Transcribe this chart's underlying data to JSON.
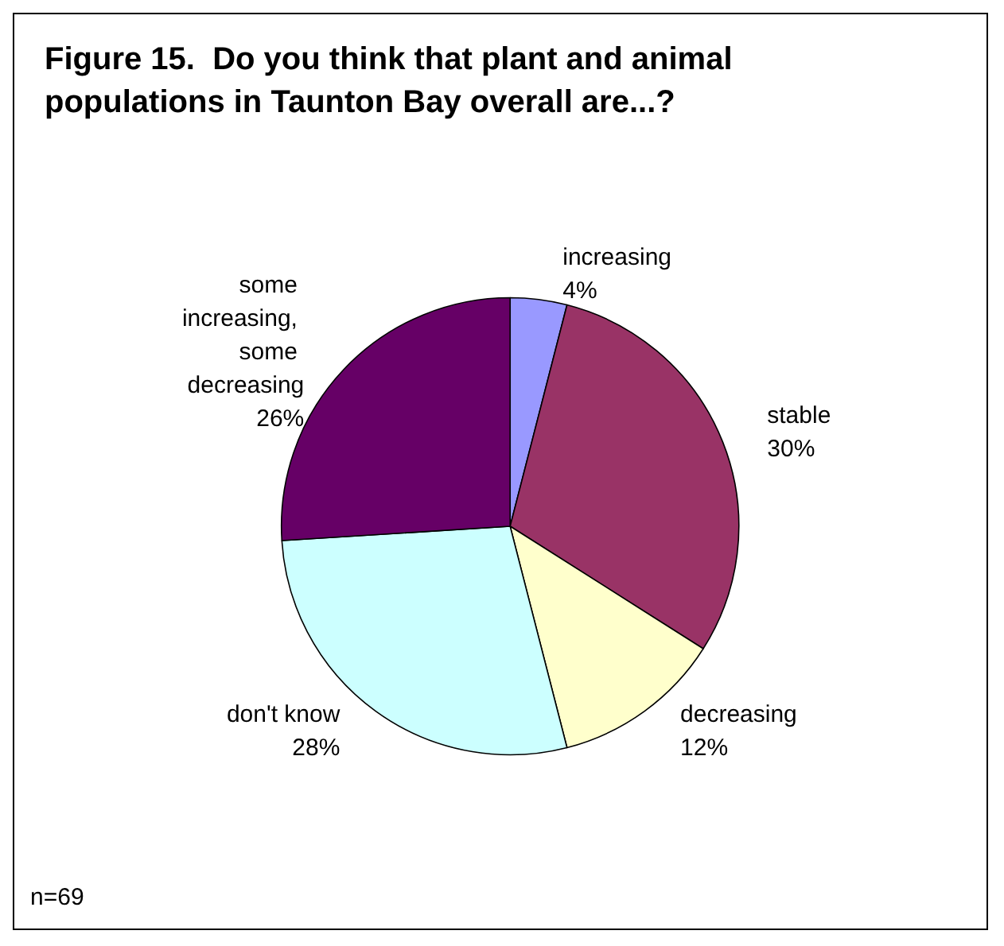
{
  "chart_data": {
    "type": "pie",
    "title": "Figure 15.  Do you think that plant and animal populations in Taunton Bay overall are...?",
    "categories": [
      "increasing",
      "stable",
      "decreasing",
      "don't know",
      "some increasing, some decreasing"
    ],
    "values": [
      4,
      30,
      12,
      28,
      26
    ],
    "value_labels": [
      "4%",
      "30%",
      "12%",
      "28%",
      "26%"
    ],
    "colors": [
      "#9999ff",
      "#993366",
      "#ffffcc",
      "#ccffff",
      "#660066"
    ],
    "annotations": [
      "n=69"
    ]
  }
}
